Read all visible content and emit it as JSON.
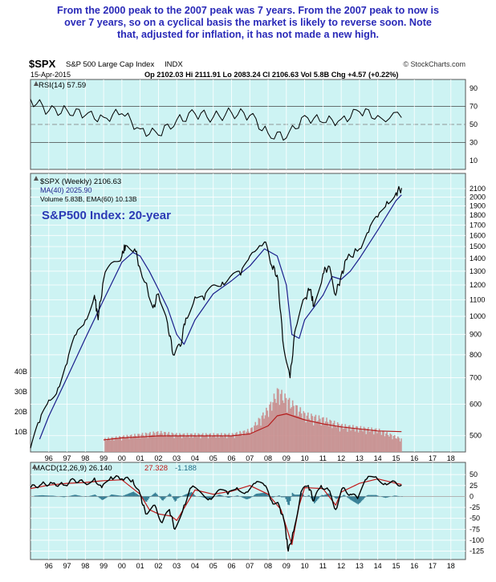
{
  "annotation": {
    "line1": "From the 2000 peak to the 2007 peak was 7 years. From the 2007 peak to now is",
    "line2": "over 7 years, so on a cyclical basis the market is likely to reverse soon. Note",
    "line3": "that, adjusted for inflation, it has not made a new high."
  },
  "header": {
    "symbol": "$SPX",
    "name": "S&P 500 Large Cap Index",
    "exchange": "INDX",
    "credit": "© StockCharts.com",
    "date": "15-Apr-2015",
    "quote": "Op 2102.03  Hi 2111.91  Lo 2083.24  Cl 2106.63  Vol 5.8B  Chg +4.57 (+0.22%)"
  },
  "colors": {
    "panel_bg": "#cdf3f3",
    "price": "#000000",
    "ma": "#1b1e8c",
    "down": "#b81c1c",
    "volume": "#c98d8d",
    "ema": "#b41c1c",
    "rsi": "#000000",
    "macd": "#000000",
    "macd_signal": "#c01818",
    "histogram": "#1e6c86",
    "grid": "#ffffff",
    "frame": "#555555",
    "up_arrow": "#1a1a9a"
  },
  "chart_data": [
    {
      "type": "line",
      "panel": "rsi",
      "legend": "RSI(14) 57.59",
      "ylim": [
        0,
        100
      ],
      "y_ticks": [
        10,
        30,
        50,
        70,
        90
      ],
      "reference_lines": [
        30,
        50,
        70
      ],
      "x": [
        1995.0,
        1996.0,
        1997.0,
        1998.0,
        1999.0,
        2000.0,
        2001.0,
        2002.0,
        2003.0,
        2004.0,
        2005.0,
        2006.0,
        2007.0,
        2008.0,
        2009.0,
        2010.0,
        2011.0,
        2012.0,
        2013.0,
        2014.0,
        2015.3
      ],
      "values": [
        78,
        65,
        66,
        60,
        58,
        62,
        45,
        38,
        55,
        62,
        58,
        63,
        60,
        40,
        35,
        60,
        52,
        56,
        64,
        60,
        57.59
      ]
    },
    {
      "type": "line",
      "panel": "price",
      "legend_price": "$SPX (Weekly) 2106.63",
      "legend_ma": "MA(40) 2025.90",
      "legend_volume": "Volume 5.83B, EMA(60) 10.13B",
      "title": "S&P500 Index: 20-year",
      "y_scale": "log",
      "ylim": [
        470,
        2200
      ],
      "y_ticks": [
        500,
        600,
        700,
        800,
        900,
        1000,
        1100,
        1200,
        1300,
        1400,
        1500,
        1600,
        1700,
        1800,
        1900,
        2000,
        2100
      ],
      "volume_ticks": [
        "10B",
        "20B",
        "30B",
        "40B"
      ],
      "x_ticks": [
        "96",
        "97",
        "98",
        "99",
        "00",
        "01",
        "02",
        "03",
        "04",
        "05",
        "06",
        "07",
        "08",
        "09",
        "10",
        "11",
        "12",
        "13",
        "14",
        "15",
        "16",
        "17",
        "18"
      ],
      "series": [
        {
          "name": "$SPX",
          "x": [
            1995.0,
            1995.5,
            1996.0,
            1996.5,
            1997.0,
            1997.5,
            1998.0,
            1998.5,
            1998.7,
            1999.0,
            1999.5,
            2000.0,
            2000.2,
            2000.7,
            2001.0,
            2001.7,
            2002.0,
            2002.5,
            2002.8,
            2003.2,
            2003.5,
            2004.0,
            2004.5,
            2005.0,
            2005.5,
            2006.0,
            2006.5,
            2007.0,
            2007.8,
            2008.2,
            2008.5,
            2008.8,
            2009.2,
            2009.5,
            2010.0,
            2010.3,
            2010.5,
            2011.0,
            2011.3,
            2011.7,
            2012.0,
            2012.3,
            2013.0,
            2013.5,
            2014.0,
            2014.5,
            2015.0,
            2015.3
          ],
          "y": [
            465,
            540,
            615,
            660,
            760,
            900,
            980,
            1130,
            980,
            1240,
            1370,
            1420,
            1510,
            1480,
            1320,
            1050,
            1140,
            960,
            800,
            840,
            990,
            1120,
            1100,
            1200,
            1220,
            1270,
            1270,
            1420,
            1540,
            1340,
            1270,
            870,
            700,
            930,
            1110,
            1170,
            1060,
            1280,
            1340,
            1130,
            1270,
            1390,
            1480,
            1630,
            1780,
            1950,
            2050,
            2106.63
          ]
        },
        {
          "name": "MA(40)",
          "x": [
            1995.5,
            1996.0,
            1997.0,
            1998.0,
            1999.0,
            2000.0,
            2000.6,
            2001.0,
            2001.5,
            2002.0,
            2002.5,
            2003.0,
            2003.4,
            2004.0,
            2005.0,
            2006.0,
            2007.0,
            2007.8,
            2008.5,
            2009.0,
            2009.3,
            2009.7,
            2010.0,
            2011.0,
            2011.5,
            2012.0,
            2012.5,
            2013.0,
            2014.0,
            2015.0,
            2015.3
          ],
          "y": [
            490,
            560,
            700,
            880,
            1100,
            1370,
            1450,
            1420,
            1300,
            1170,
            1050,
            900,
            850,
            980,
            1140,
            1230,
            1340,
            1480,
            1420,
            1200,
            900,
            880,
            980,
            1130,
            1260,
            1240,
            1300,
            1400,
            1650,
            1960,
            2025.9
          ]
        },
        {
          "name": "Volume",
          "unit": "B",
          "x": [
            1999,
            2000,
            2001,
            2002,
            2003,
            2004,
            2005,
            2006,
            2007,
            2008,
            2008.5,
            2009,
            2010,
            2011,
            2012,
            2013,
            2014,
            2015.3
          ],
          "y": [
            6,
            7,
            8,
            9,
            8,
            8,
            8,
            8,
            10,
            20,
            28,
            24,
            17,
            15,
            12,
            11,
            10,
            5.83
          ]
        },
        {
          "name": "EMA(60)",
          "unit": "B",
          "x": [
            1999,
            2000,
            2001,
            2002,
            2003,
            2004,
            2005,
            2006,
            2007,
            2008,
            2008.5,
            2009,
            2010,
            2011,
            2012,
            2013,
            2014,
            2015.3
          ],
          "y": [
            6,
            7,
            7.5,
            8,
            8,
            8,
            8,
            8,
            9,
            13,
            18,
            19,
            16,
            14,
            12.5,
            11.5,
            10.5,
            10.13
          ]
        }
      ]
    },
    {
      "type": "line",
      "panel": "macd",
      "legend_macd": "MACD(12,26,9) 26.140",
      "legend_signal": "27.328",
      "legend_hist": "-1.188",
      "ylim": [
        -135,
        65
      ],
      "y_ticks": [
        50,
        25,
        0,
        -25,
        -50,
        -75,
        -100,
        -125
      ],
      "x_ticks": [
        "96",
        "97",
        "98",
        "99",
        "00",
        "01",
        "02",
        "03",
        "04",
        "05",
        "06",
        "07",
        "08",
        "09",
        "10",
        "11",
        "12",
        "13",
        "14",
        "15",
        "16",
        "17",
        "18"
      ],
      "series": [
        {
          "name": "MACD",
          "x": [
            1995.0,
            1995.6,
            1996.2,
            1996.8,
            1997.4,
            1998.0,
            1998.5,
            1998.9,
            1999.4,
            2000.0,
            2000.6,
            2001.0,
            2001.3,
            2001.8,
            2002.2,
            2002.6,
            2002.9,
            2003.4,
            2003.8,
            2004.3,
            2004.8,
            2005.3,
            2005.8,
            2006.3,
            2006.8,
            2007.3,
            2007.8,
            2008.2,
            2008.6,
            2008.9,
            2009.1,
            2009.4,
            2009.8,
            2010.2,
            2010.5,
            2010.9,
            2011.3,
            2011.7,
            2012.1,
            2012.5,
            2012.9,
            2013.4,
            2013.9,
            2014.4,
            2014.9,
            2015.3
          ],
          "y": [
            20,
            28,
            30,
            26,
            38,
            30,
            42,
            20,
            45,
            40,
            38,
            5,
            -40,
            -20,
            -60,
            -30,
            -75,
            -20,
            20,
            10,
            -5,
            15,
            5,
            20,
            10,
            30,
            25,
            -10,
            -20,
            -60,
            -125,
            -80,
            10,
            25,
            -10,
            25,
            15,
            -30,
            20,
            5,
            -5,
            40,
            45,
            30,
            35,
            26.14
          ]
        },
        {
          "name": "Signal",
          "x": [
            1995.0,
            1996.0,
            1997.0,
            1998.0,
            1999.0,
            2000.0,
            2001.0,
            2001.5,
            2002.0,
            2002.7,
            2003.0,
            2003.5,
            2004.0,
            2005.0,
            2006.0,
            2007.0,
            2008.0,
            2008.7,
            2009.0,
            2009.3,
            2009.7,
            2010.0,
            2011.0,
            2011.7,
            2012.0,
            2013.0,
            2014.0,
            2015.0,
            2015.3
          ],
          "y": [
            18,
            26,
            30,
            32,
            36,
            38,
            5,
            -30,
            -40,
            -45,
            -55,
            -20,
            15,
            5,
            12,
            25,
            5,
            -30,
            -70,
            -110,
            -20,
            20,
            18,
            -20,
            10,
            30,
            40,
            30,
            27.328
          ]
        }
      ]
    }
  ]
}
